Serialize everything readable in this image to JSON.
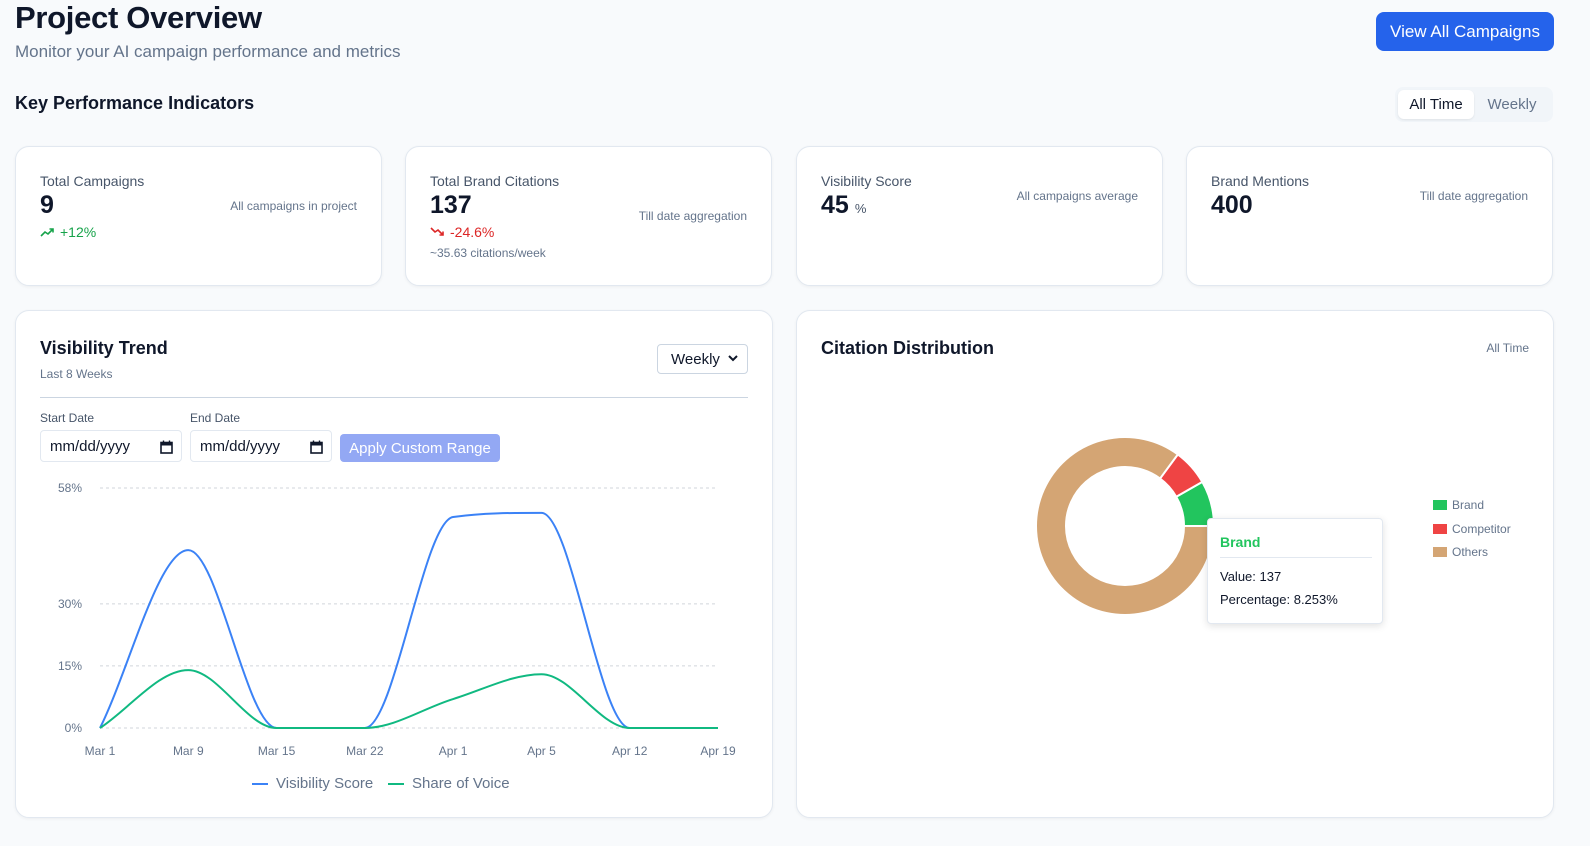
{
  "header": {
    "title": "Project Overview",
    "subtitle": "Monitor your AI campaign performance and metrics",
    "view_all_label": "View All Campaigns"
  },
  "kpi_section": {
    "title": "Key Performance Indicators",
    "toggle": {
      "all_time": "All Time",
      "weekly": "Weekly",
      "selected": "All Time"
    }
  },
  "kpis": [
    {
      "label": "Total Campaigns",
      "value": "9",
      "note": "All campaigns in project",
      "trend": "+12%",
      "trend_dir": "up"
    },
    {
      "label": "Total Brand Citations",
      "value": "137",
      "note": "Till date aggregation",
      "trend": "-24.6%",
      "trend_dir": "down",
      "sub": "~35.63 citations/week"
    },
    {
      "label": "Visibility Score",
      "value": "45",
      "unit": "%",
      "note": "All campaigns average"
    },
    {
      "label": "Brand Mentions",
      "value": "400",
      "note": "Till date aggregation"
    }
  ],
  "visibility_trend": {
    "title": "Visibility Trend",
    "subtitle": "Last 8 Weeks",
    "select_value": "Weekly",
    "start_date_label": "Start Date",
    "end_date_label": "End Date",
    "start_date_placeholder": "mm/dd/yyyy",
    "end_date_placeholder": "mm/dd/yyyy",
    "apply_label": "Apply Custom Range"
  },
  "citation_distribution": {
    "title": "Citation Distribution",
    "period": "All Time",
    "tooltip": {
      "title": "Brand",
      "value_line": "Value: 137",
      "percentage_line": "Percentage: 8.253%"
    }
  },
  "colors": {
    "accent": "#2563eb",
    "visibility": "#3b82f6",
    "share_of_voice": "#10b981",
    "brand": "#22c55e",
    "competitor": "#ef4444",
    "others": "#d4a574"
  },
  "chart_data": [
    {
      "type": "line",
      "title": "Visibility Trend",
      "categories": [
        "Mar 1",
        "Mar 9",
        "Mar 15",
        "Mar 22",
        "Apr 1",
        "Apr 5",
        "Apr 12",
        "Apr 19"
      ],
      "y_ticks": [
        "0%",
        "15%",
        "30%",
        "58%"
      ],
      "y_tick_values": [
        0,
        15,
        30,
        58
      ],
      "ylim": [
        0,
        58
      ],
      "series": [
        {
          "name": "Visibility Score",
          "values": [
            0,
            43,
            0,
            0,
            51,
            52,
            0,
            0
          ]
        },
        {
          "name": "Share of Voice",
          "values": [
            0,
            14,
            0,
            0,
            7,
            13,
            0,
            0
          ]
        }
      ]
    },
    {
      "type": "pie",
      "title": "Citation Distribution",
      "labels": [
        "Brand",
        "Competitor",
        "Others"
      ],
      "values": [
        137,
        110,
        1413
      ]
    }
  ]
}
